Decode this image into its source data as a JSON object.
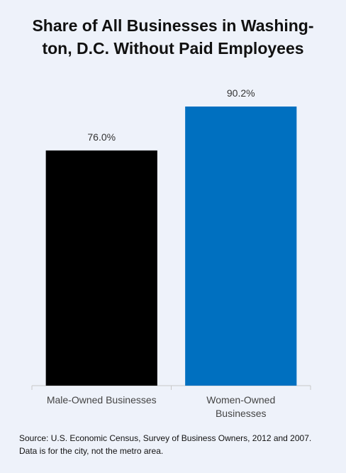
{
  "chart_data": {
    "type": "bar",
    "title_lines": [
      "Share of All Businesses in Washing-",
      "ton, D.C. Without Paid Employees"
    ],
    "categories": [
      "Male-Owned Businesses",
      "Women-Owned Businesses"
    ],
    "values": [
      76.0,
      90.2
    ],
    "value_labels": [
      "76.0%",
      "90.2%"
    ],
    "colors": [
      "#000000",
      "#0070c0"
    ],
    "note": "Source: U.S. Economic Census, Survey of Business Owners, 2012 and 2007. Data is for the city, not the metro area."
  }
}
